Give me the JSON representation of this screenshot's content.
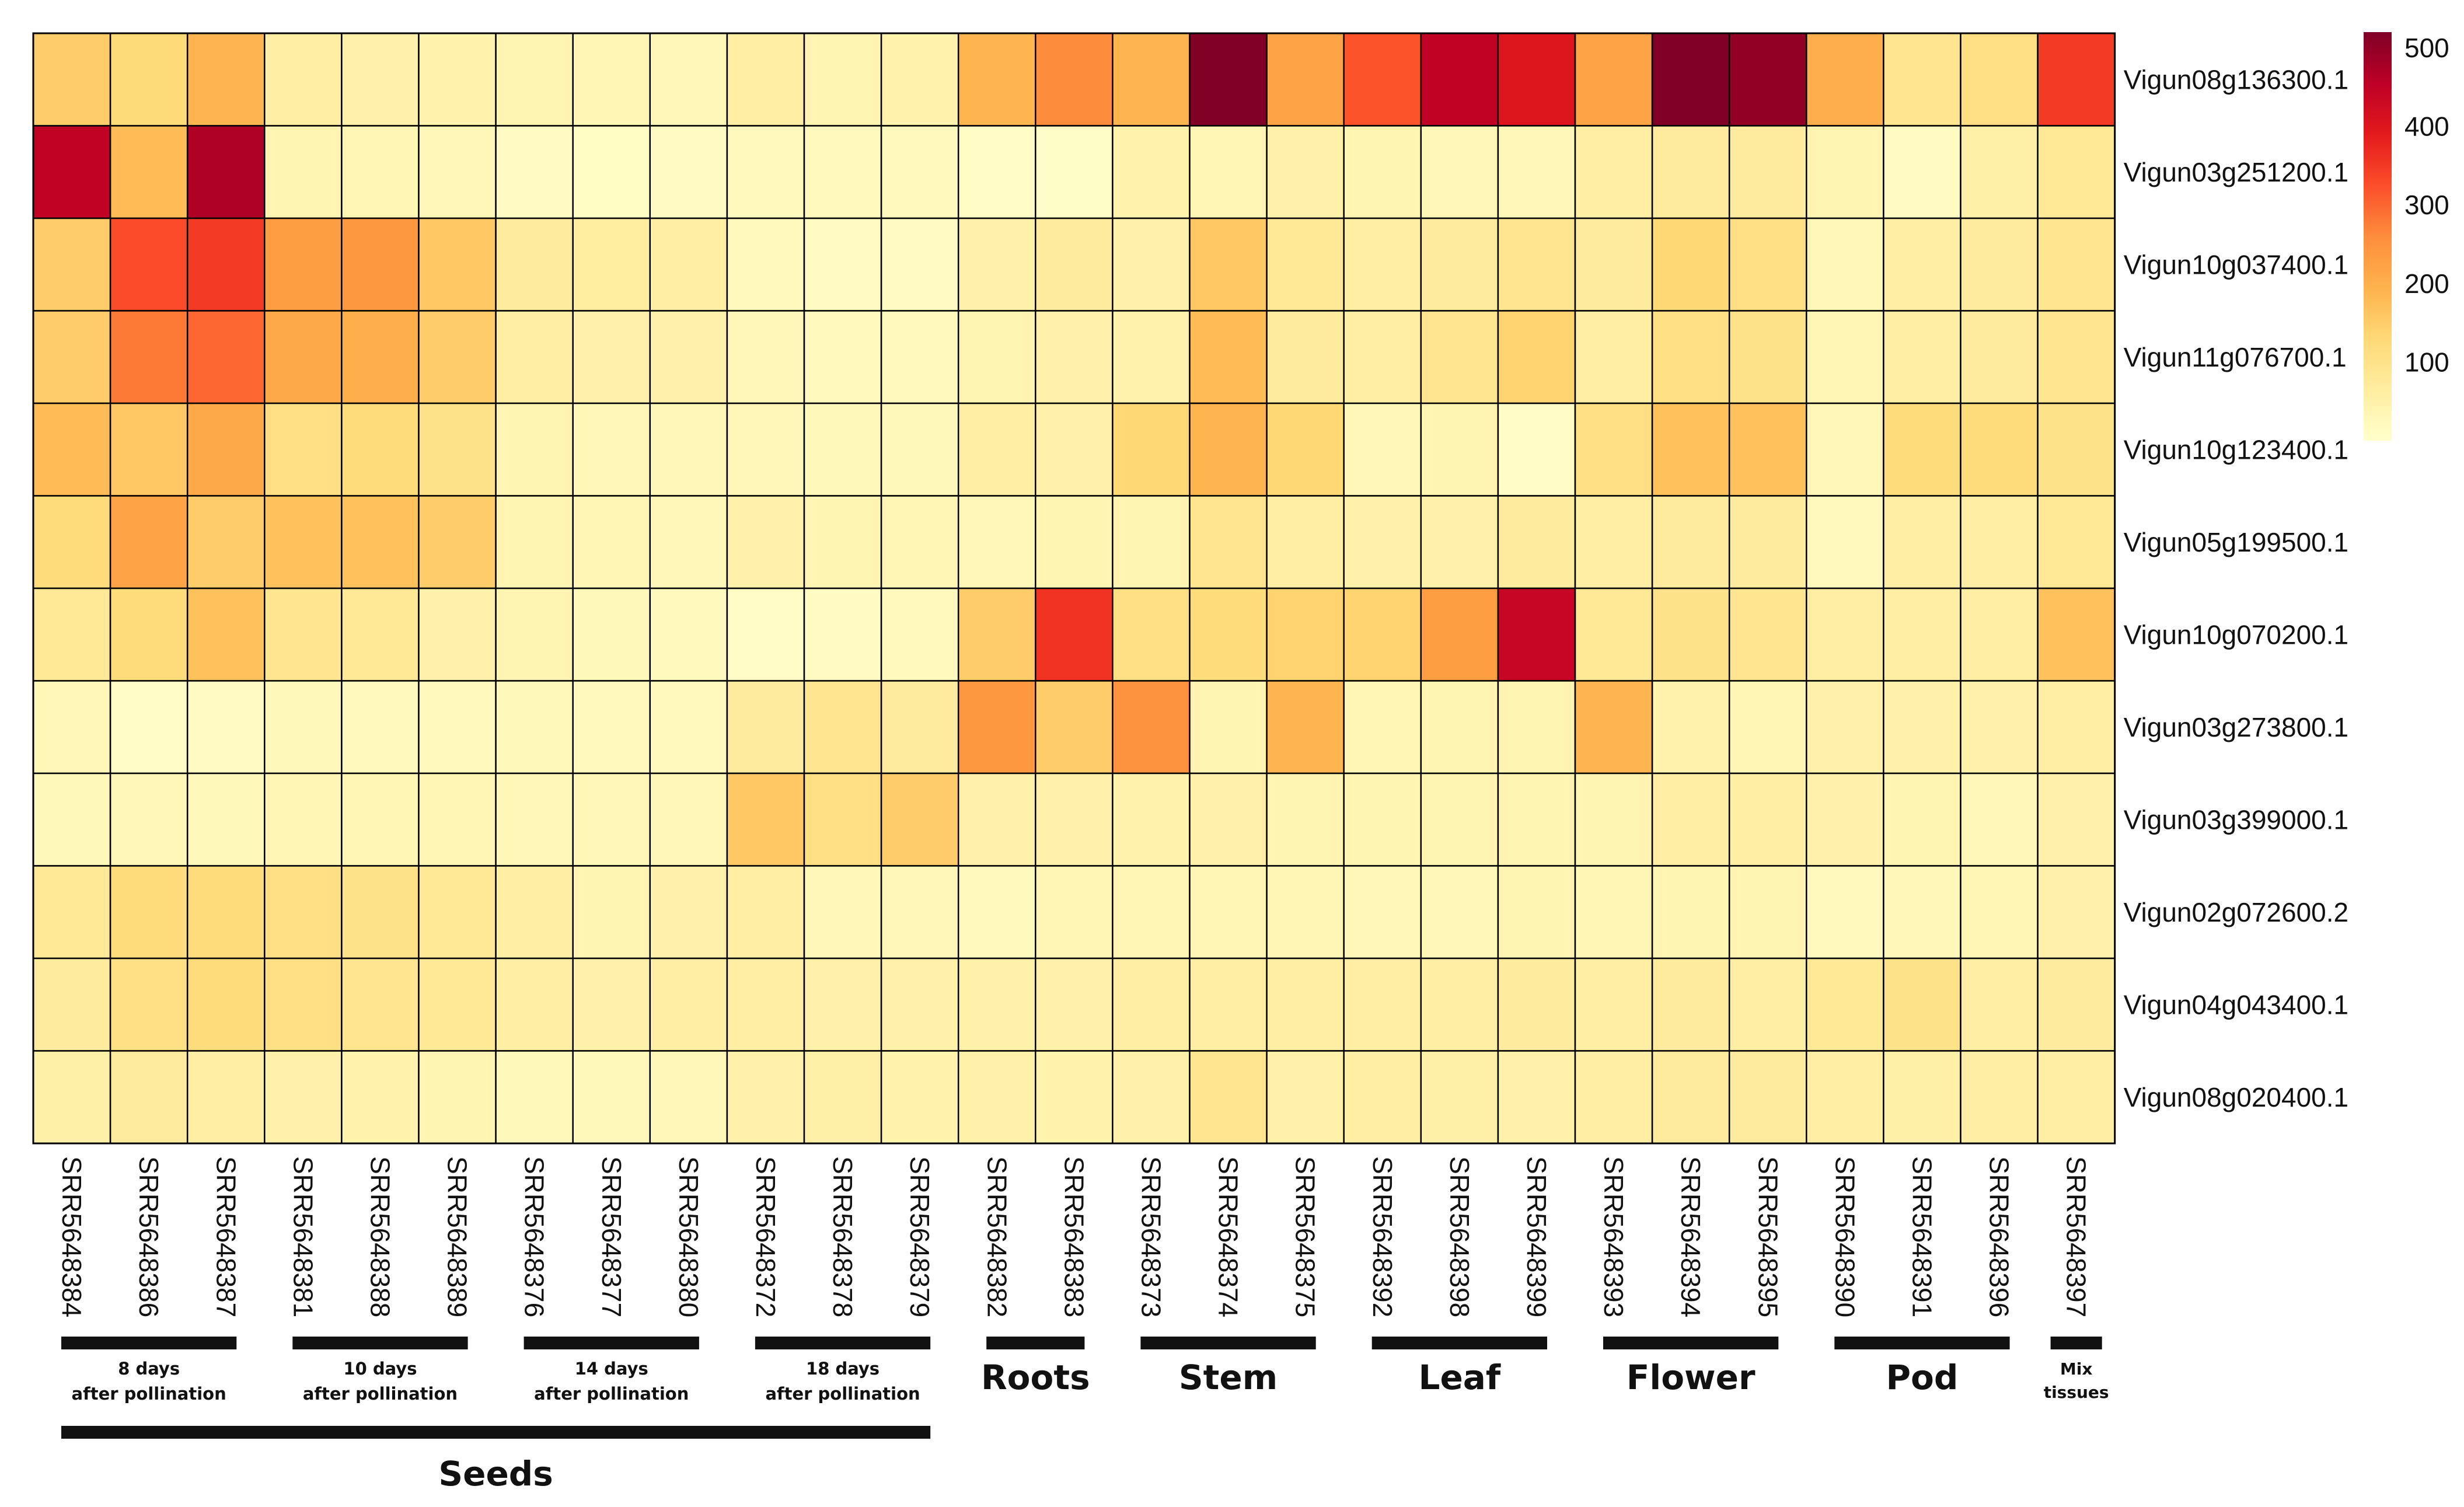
{
  "chart_data": {
    "type": "heatmap",
    "title": "",
    "rows": [
      "Vigun08g136300.1",
      "Vigun03g251200.1",
      "Vigun10g037400.1",
      "Vigun11g076700.1",
      "Vigun10g123400.1",
      "Vigun05g199500.1",
      "Vigun10g070200.1",
      "Vigun03g273800.1",
      "Vigun03g399000.1",
      "Vigun02g072600.2",
      "Vigun04g043400.1",
      "Vigun08g020400.1"
    ],
    "columns": [
      "SRR5648384",
      "SRR5648386",
      "SRR5648387",
      "SRR5648381",
      "SRR5648388",
      "SRR5648389",
      "SRR5648376",
      "SRR5648377",
      "SRR5648380",
      "SRR5648372",
      "SRR5648378",
      "SRR5648379",
      "SRR5648382",
      "SRR5648383",
      "SRR5648373",
      "SRR5648374",
      "SRR5648375",
      "SRR5648392",
      "SRR5648398",
      "SRR5648399",
      "SRR5648393",
      "SRR5648394",
      "SRR5648395",
      "SRR5648390",
      "SRR5648391",
      "SRR5648396",
      "SRR5648397"
    ],
    "values": [
      [
        150,
        125,
        190,
        60,
        50,
        45,
        40,
        35,
        30,
        60,
        40,
        45,
        190,
        260,
        190,
        520,
        220,
        320,
        450,
        400,
        220,
        520,
        500,
        200,
        90,
        110,
        350
      ],
      [
        450,
        180,
        470,
        40,
        35,
        30,
        15,
        12,
        15,
        20,
        20,
        20,
        10,
        8,
        45,
        35,
        50,
        40,
        30,
        30,
        60,
        70,
        70,
        40,
        15,
        55,
        80
      ],
      [
        150,
        330,
        350,
        230,
        240,
        160,
        70,
        65,
        60,
        20,
        15,
        15,
        50,
        70,
        50,
        160,
        80,
        60,
        70,
        90,
        70,
        130,
        110,
        30,
        60,
        70,
        90
      ],
      [
        150,
        280,
        300,
        210,
        200,
        150,
        60,
        50,
        50,
        30,
        20,
        20,
        40,
        50,
        45,
        180,
        70,
        60,
        90,
        140,
        60,
        110,
        100,
        35,
        60,
        70,
        90
      ],
      [
        180,
        160,
        210,
        110,
        120,
        100,
        40,
        30,
        30,
        30,
        25,
        25,
        60,
        50,
        130,
        190,
        130,
        30,
        40,
        10,
        110,
        170,
        170,
        30,
        120,
        120,
        100
      ],
      [
        120,
        220,
        150,
        170,
        170,
        150,
        40,
        35,
        30,
        50,
        40,
        35,
        30,
        40,
        40,
        90,
        60,
        50,
        50,
        70,
        60,
        70,
        70,
        20,
        60,
        60,
        80
      ],
      [
        80,
        120,
        170,
        90,
        80,
        50,
        40,
        25,
        20,
        10,
        15,
        20,
        150,
        360,
        110,
        120,
        140,
        140,
        230,
        440,
        80,
        100,
        90,
        60,
        60,
        60,
        170
      ],
      [
        30,
        10,
        15,
        25,
        20,
        20,
        25,
        20,
        20,
        70,
        90,
        70,
        240,
        150,
        250,
        40,
        190,
        35,
        40,
        40,
        190,
        45,
        35,
        50,
        50,
        50,
        60
      ],
      [
        25,
        30,
        25,
        35,
        35,
        35,
        30,
        30,
        30,
        160,
        110,
        150,
        50,
        50,
        45,
        50,
        40,
        40,
        40,
        40,
        40,
        60,
        60,
        50,
        40,
        30,
        50
      ],
      [
        80,
        120,
        120,
        110,
        100,
        80,
        60,
        40,
        50,
        60,
        30,
        30,
        20,
        35,
        35,
        35,
        35,
        30,
        30,
        40,
        35,
        40,
        40,
        20,
        30,
        35,
        50
      ],
      [
        70,
        110,
        120,
        110,
        90,
        80,
        60,
        50,
        60,
        60,
        50,
        50,
        50,
        50,
        60,
        60,
        60,
        60,
        60,
        70,
        60,
        70,
        60,
        80,
        100,
        60,
        70
      ],
      [
        55,
        70,
        60,
        50,
        45,
        40,
        25,
        25,
        30,
        50,
        55,
        45,
        50,
        45,
        50,
        90,
        50,
        60,
        55,
        50,
        60,
        70,
        70,
        60,
        55,
        60,
        60
      ]
    ],
    "color_scale": {
      "min": 0,
      "max": 520,
      "ticks": [
        100,
        200,
        300,
        400,
        500
      ],
      "colors": [
        "#ffffcc",
        "#ffeda0",
        "#fed976",
        "#feb24c",
        "#fd8d3c",
        "#fc4e2a",
        "#e31a1c",
        "#bd0026",
        "#800026"
      ]
    },
    "sample_groups": [
      {
        "label_lines": [
          "8 days",
          "after pollination"
        ],
        "start": 0,
        "end": 2
      },
      {
        "label_lines": [
          "10 days",
          "after pollination"
        ],
        "start": 3,
        "end": 5
      },
      {
        "label_lines": [
          "14 days",
          "after pollination"
        ],
        "start": 6,
        "end": 8
      },
      {
        "label_lines": [
          "18 days",
          "after pollination"
        ],
        "start": 9,
        "end": 11
      }
    ],
    "tissue_groups": [
      {
        "label": "Roots",
        "start": 12,
        "end": 13
      },
      {
        "label": "Stem",
        "start": 14,
        "end": 16
      },
      {
        "label": "Leaf",
        "start": 17,
        "end": 19
      },
      {
        "label": "Flower",
        "start": 20,
        "end": 22
      },
      {
        "label": "Pod",
        "start": 23,
        "end": 25
      }
    ],
    "mix_group": {
      "label_lines": [
        "Mix",
        "tissues"
      ],
      "start": 26,
      "end": 26
    },
    "seeds_group": {
      "label": "Seeds",
      "start": 0,
      "end": 11
    }
  }
}
